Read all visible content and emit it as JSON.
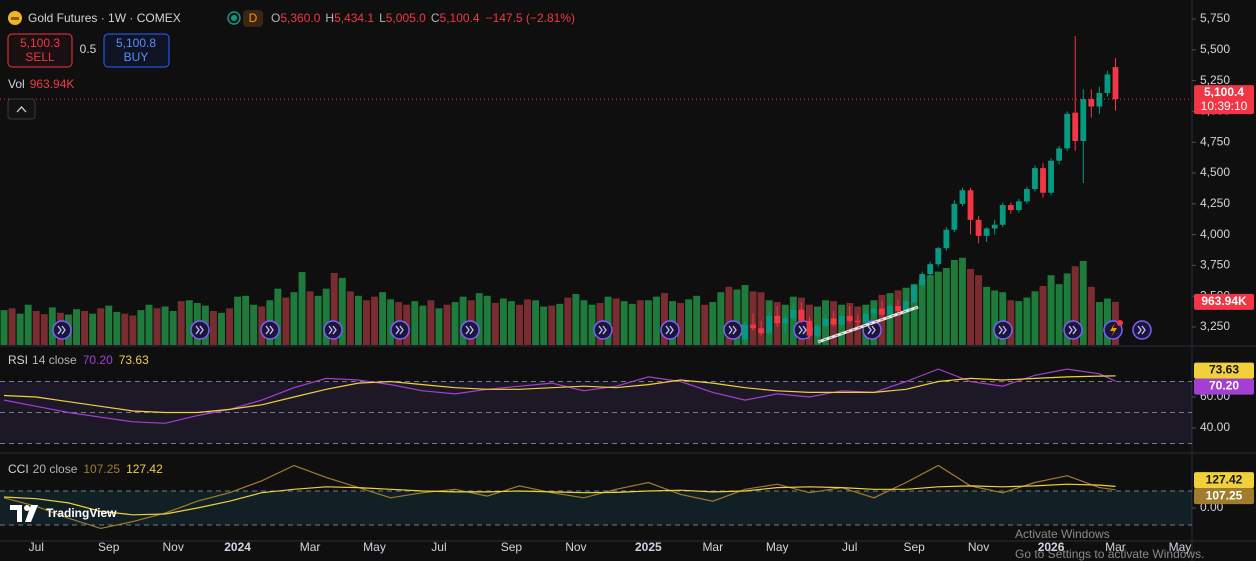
{
  "header": {
    "symbol": "Gold Futures · 1W · COMEX",
    "status": "D",
    "ohlc": [
      {
        "key": "O",
        "value": "5,360.0"
      },
      {
        "key": "H",
        "value": "5,434.1"
      },
      {
        "key": "L",
        "value": "5,005.0"
      },
      {
        "key": "C",
        "value": "5,100.4"
      }
    ],
    "change": "−147.5 (−2.81%)"
  },
  "trade": {
    "sell_price": "5,100.3",
    "sell": "SELL",
    "spread": "0.5",
    "buy_price": "5,100.8",
    "buy": "BUY"
  },
  "watermark": {
    "brand": "TradingView"
  },
  "windows": {
    "title": "Activate Windows",
    "subtitle": "Go to Settings to activate Windows."
  },
  "chart_data": [
    {
      "type": "candlestick",
      "categories": [
        null,
        null,
        null,
        null,
        "Jul",
        null,
        null,
        null,
        null,
        null,
        null,
        null,
        null,
        "Sep",
        null,
        null,
        null,
        null,
        null,
        null,
        null,
        "Nov",
        null,
        null,
        null,
        null,
        null,
        null,
        null,
        "2024",
        null,
        null,
        null,
        null,
        null,
        null,
        null,
        null,
        "Mar",
        null,
        null,
        null,
        null,
        null,
        null,
        null,
        "May",
        null,
        null,
        null,
        null,
        null,
        null,
        null,
        "Jul",
        null,
        null,
        null,
        null,
        null,
        null,
        null,
        null,
        "Sep",
        null,
        null,
        null,
        null,
        null,
        null,
        null,
        "Nov",
        null,
        null,
        null,
        null,
        null,
        null,
        null,
        null,
        "2025",
        null,
        null,
        null,
        null,
        null,
        null,
        null,
        "Mar",
        null,
        null,
        null,
        null,
        null,
        null,
        null,
        "May",
        null,
        null,
        null,
        null,
        null,
        null,
        null,
        null,
        "Jul",
        null,
        null,
        null,
        null,
        null,
        null,
        null,
        "Sep",
        null,
        null,
        null,
        null,
        null,
        null,
        null,
        "Nov",
        null,
        null,
        null,
        null,
        null,
        null,
        null,
        null,
        "2026",
        null,
        null,
        null,
        null,
        null,
        null,
        null,
        "Mar",
        null,
        null,
        null,
        null,
        null,
        null,
        null,
        "May",
        null
      ],
      "ohlc": [
        null,
        null,
        null,
        null,
        null,
        null,
        null,
        null,
        null,
        null,
        null,
        null,
        null,
        null,
        null,
        null,
        null,
        null,
        null,
        null,
        null,
        null,
        null,
        null,
        null,
        null,
        null,
        null,
        null,
        null,
        null,
        null,
        null,
        null,
        null,
        null,
        null,
        null,
        null,
        null,
        null,
        null,
        null,
        null,
        null,
        null,
        null,
        null,
        null,
        null,
        null,
        null,
        null,
        null,
        null,
        null,
        null,
        null,
        null,
        null,
        null,
        null,
        null,
        null,
        null,
        null,
        null,
        null,
        null,
        null,
        null,
        null,
        null,
        null,
        null,
        null,
        null,
        null,
        null,
        null,
        null,
        null,
        null,
        null,
        null,
        null,
        null,
        null,
        null,
        null,
        null,
        null,
        [
          3150,
          3290,
          3120,
          3270
        ],
        [
          3270,
          3360,
          3220,
          3240
        ],
        [
          3240,
          3300,
          3180,
          3200
        ],
        [
          3200,
          3380,
          3190,
          3340
        ],
        [
          3340,
          3420,
          3250,
          3280
        ],
        [
          3280,
          3350,
          3200,
          3320
        ],
        [
          3320,
          3440,
          3300,
          3390
        ],
        [
          3390,
          3450,
          3280,
          3300
        ],
        [
          3300,
          3330,
          3150,
          3180
        ],
        [
          3180,
          3270,
          3160,
          3260
        ],
        [
          3260,
          3350,
          3240,
          3320
        ],
        [
          3320,
          3380,
          3250,
          3270
        ],
        [
          3270,
          3360,
          3240,
          3340
        ],
        [
          3340,
          3420,
          3280,
          3300
        ],
        [
          3300,
          3350,
          3250,
          3290
        ],
        [
          3290,
          3400,
          3270,
          3360
        ],
        [
          3360,
          3420,
          3330,
          3400
        ],
        [
          3400,
          3460,
          3330,
          3350
        ],
        [
          3350,
          3440,
          3340,
          3420
        ],
        [
          3420,
          3470,
          3360,
          3380
        ],
        [
          3380,
          3480,
          3370,
          3460
        ],
        [
          3450,
          3600,
          3440,
          3590
        ],
        [
          3590,
          3700,
          3570,
          3680
        ],
        [
          3680,
          3780,
          3660,
          3760
        ],
        [
          3760,
          3900,
          3740,
          3890
        ],
        [
          3890,
          4060,
          3870,
          4040
        ],
        [
          4040,
          4280,
          4020,
          4250
        ],
        [
          4250,
          4380,
          4230,
          4360
        ],
        [
          4360,
          4380,
          4000,
          4120
        ],
        [
          4120,
          4150,
          3930,
          3990
        ],
        [
          3990,
          4060,
          3940,
          4050
        ],
        [
          4050,
          4120,
          4000,
          4080
        ],
        [
          4080,
          4260,
          4060,
          4240
        ],
        [
          4240,
          4260,
          4170,
          4200
        ],
        [
          4200,
          4290,
          4180,
          4270
        ],
        [
          4270,
          4390,
          4250,
          4370
        ],
        [
          4370,
          4560,
          4350,
          4540
        ],
        [
          4540,
          4580,
          4300,
          4340
        ],
        [
          4340,
          4620,
          4320,
          4600
        ],
        [
          4600,
          4720,
          4570,
          4700
        ],
        [
          4700,
          5000,
          4680,
          4980
        ],
        [
          4990,
          5612,
          4680,
          4760
        ],
        [
          4760,
          5180,
          4419,
          5100
        ],
        [
          5100,
          5180,
          4950,
          5040
        ],
        [
          5040,
          5200,
          4980,
          5150
        ],
        [
          5150,
          5330,
          5120,
          5300
        ],
        [
          5360,
          5434.1,
          5005,
          5100.4
        ],
        null,
        null,
        null,
        null,
        null,
        null,
        null,
        null,
        null
      ],
      "up_color": "#089981",
      "down_color": "#f23645",
      "ylim": [
        3104,
        5864
      ],
      "yticks": [
        {
          "value": 3250,
          "label": "3,250"
        },
        {
          "value": 3500,
          "label": "3,500"
        },
        {
          "value": 3750,
          "label": "3,750"
        },
        {
          "value": 4000,
          "label": "4,000"
        },
        {
          "value": 4250,
          "label": "4,250"
        },
        {
          "value": 4500,
          "label": "4,500"
        },
        {
          "value": 4750,
          "label": "4,750"
        },
        {
          "value": 5000,
          "label": "5,000"
        },
        {
          "value": 5250,
          "label": "5,250"
        },
        {
          "value": 5500,
          "label": "5,500"
        },
        {
          "value": 5750,
          "label": "5,750"
        }
      ],
      "price_tag": {
        "price": "5,100.4",
        "countdown": "10:39:10"
      },
      "volume": {
        "name": "Vol",
        "values": [
          780,
          820,
          700,
          900,
          760,
          690,
          840,
          720,
          680,
          800,
          760,
          700,
          820,
          880,
          740,
          700,
          660,
          780,
          900,
          820,
          860,
          760,
          980,
          1000,
          940,
          880,
          760,
          720,
          820,
          1080,
          1100,
          900,
          860,
          1000,
          1260,
          1060,
          1180,
          1630,
          1200,
          1100,
          1260,
          1610,
          1500,
          1200,
          1100,
          1000,
          1080,
          1180,
          1020,
          960,
          900,
          980,
          880,
          1000,
          820,
          900,
          960,
          1080,
          1000,
          1160,
          1100,
          940,
          1040,
          980,
          900,
          1020,
          1000,
          860,
          880,
          920,
          1060,
          1140,
          1000,
          900,
          940,
          1080,
          1040,
          980,
          920,
          1000,
          1000,
          1080,
          1160,
          980,
          940,
          1020,
          1100,
          900,
          960,
          1180,
          1300,
          1240,
          1340,
          1200,
          1180,
          1000,
          960,
          900,
          1080,
          1060,
          900,
          860,
          1000,
          980,
          900,
          940,
          860,
          900,
          1000,
          1120,
          1160,
          1220,
          1280,
          1360,
          1460,
          1560,
          1640,
          1720,
          1900,
          1950,
          1700,
          1560,
          1300,
          1220,
          1180,
          1000,
          980,
          1060,
          1200,
          1320,
          1560,
          1360,
          1600,
          1760,
          1880,
          1300,
          960,
          1040,
          963.94,
          null,
          null,
          null,
          null,
          null,
          null,
          null,
          null,
          null
        ],
        "rising": [
          true,
          false,
          true,
          true,
          false,
          false,
          true,
          false,
          true,
          true,
          false,
          true,
          false,
          true,
          true,
          false,
          false,
          true,
          true,
          false,
          true,
          true,
          false,
          true,
          true,
          true,
          false,
          true,
          false,
          true,
          true,
          true,
          false,
          true,
          true,
          false,
          true,
          true,
          false,
          true,
          true,
          false,
          true,
          false,
          true,
          false,
          false,
          true,
          true,
          false,
          false,
          true,
          true,
          false,
          true,
          false,
          true,
          true,
          false,
          true,
          true,
          false,
          true,
          true,
          false,
          false,
          true,
          true,
          false,
          true,
          false,
          true,
          true,
          true,
          false,
          true,
          false,
          true,
          true,
          false,
          true,
          true,
          false,
          true,
          false,
          true,
          true,
          false,
          true,
          true,
          false,
          true,
          true,
          false,
          false,
          true,
          false,
          true,
          true,
          false,
          false,
          true,
          true,
          false,
          true,
          false,
          false,
          true,
          true,
          false,
          true,
          false,
          true,
          true,
          true,
          true,
          true,
          true,
          true,
          true,
          false,
          false,
          true,
          true,
          true,
          false,
          true,
          true,
          true,
          false,
          true,
          true,
          true,
          false,
          true,
          false,
          true,
          true,
          false,
          false,
          false,
          false,
          false,
          false,
          false,
          false,
          false,
          false
        ],
        "up_color": "#1e7b3b",
        "down_color": "#7b2c30",
        "ylim": [
          0,
          7600
        ],
        "last_label": "963.94K"
      }
    },
    {
      "type": "line",
      "title": "RSI",
      "params": "14 close",
      "x": [
        0,
        4,
        8,
        12,
        16,
        20,
        24,
        28,
        32,
        36,
        40,
        44,
        48,
        52,
        56,
        60,
        64,
        68,
        72,
        76,
        80,
        84,
        88,
        92,
        96,
        100,
        104,
        108,
        112,
        116,
        120,
        124,
        128,
        132,
        136,
        138
      ],
      "xlim": [
        -0.5,
        147.5
      ],
      "ylim": [
        24.5,
        92.3
      ],
      "yticks": [
        {
          "value": 60,
          "label": "60.00"
        },
        {
          "value": 40,
          "label": "40.00"
        }
      ],
      "bands": [
        70,
        50,
        30
      ],
      "band_fill": "rgba(126,87,194,0.13)",
      "series": [
        {
          "color": "#a43fd3",
          "last_label": "70.20",
          "values": [
            58,
            54,
            50,
            47,
            44,
            43,
            48,
            52,
            58,
            66,
            72,
            71,
            68,
            64,
            62,
            65,
            67,
            69,
            64,
            67,
            73,
            70,
            63,
            58,
            62,
            60,
            64,
            63,
            70,
            78,
            70,
            67,
            74,
            78,
            75,
            70.2
          ]
        },
        {
          "color": "#f2d03b",
          "last_label": "73.63",
          "values": [
            61,
            60,
            57,
            54,
            51,
            50,
            50,
            52,
            55,
            60,
            65,
            69,
            70,
            68,
            66,
            65,
            65,
            66,
            67,
            66,
            68,
            71,
            69,
            66,
            64,
            63,
            63,
            63,
            65,
            70,
            72,
            71,
            72,
            73,
            73.5,
            73.63
          ]
        }
      ]
    },
    {
      "type": "line",
      "title": "CCI",
      "params": "20 close",
      "x": [
        0,
        4,
        8,
        12,
        16,
        20,
        24,
        28,
        32,
        36,
        40,
        44,
        48,
        52,
        56,
        60,
        64,
        68,
        72,
        76,
        80,
        84,
        88,
        92,
        96,
        100,
        104,
        108,
        112,
        116,
        120,
        124,
        128,
        132,
        136,
        138
      ],
      "xlim": [
        -0.5,
        147.5
      ],
      "ylim": [
        -188,
        312
      ],
      "yticks": [
        {
          "value": 0,
          "label": "0.00"
        }
      ],
      "bands": [
        100,
        -100
      ],
      "band_fill": "rgba(38,140,170,0.14)",
      "series": [
        {
          "color": "#a07d2c",
          "last_label": "107.25",
          "values": [
            60,
            10,
            -60,
            -120,
            -80,
            -30,
            40,
            90,
            160,
            250,
            180,
            120,
            60,
            90,
            110,
            70,
            130,
            90,
            60,
            110,
            150,
            80,
            40,
            110,
            140,
            90,
            120,
            60,
            150,
            250,
            130,
            90,
            150,
            190,
            120,
            107.25
          ]
        },
        {
          "color": "#f2d03b",
          "last_label": "127.42",
          "values": [
            65,
            55,
            30,
            -20,
            -40,
            -35,
            0,
            40,
            90,
            110,
            125,
            120,
            110,
            100,
            95,
            95,
            100,
            95,
            90,
            92,
            100,
            105,
            95,
            100,
            120,
            125,
            120,
            110,
            110,
            125,
            130,
            125,
            130,
            140,
            135,
            127.42
          ]
        }
      ]
    }
  ]
}
